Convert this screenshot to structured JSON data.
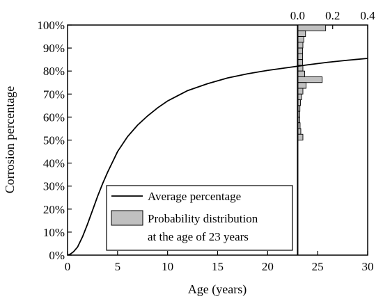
{
  "chart_data": {
    "type": "line",
    "title": "",
    "xlabel": "Age (years)",
    "ylabel": "Corrosion percentage",
    "xlim": [
      0,
      30
    ],
    "ylim": [
      0,
      100
    ],
    "x_ticks": [
      "0",
      "5",
      "10",
      "15",
      "20",
      "25",
      "30"
    ],
    "y_ticks": [
      "0%",
      "10%",
      "20%",
      "30%",
      "40%",
      "50%",
      "60%",
      "70%",
      "80%",
      "90%",
      "100%"
    ],
    "grid": false,
    "legend_position": "bottom-center",
    "series": [
      {
        "name": "Average percentage",
        "color": "#000000",
        "x": [
          0,
          0.3,
          0.6,
          1,
          1.5,
          2,
          2.5,
          3,
          3.5,
          4,
          5,
          6,
          7,
          8,
          9,
          10,
          12,
          14,
          16,
          18,
          20,
          22,
          23,
          24,
          26,
          28,
          30
        ],
        "y": [
          0,
          0.5,
          1.5,
          3.5,
          8,
          13.5,
          19.5,
          25.5,
          31,
          36,
          45,
          51.5,
          56.5,
          60.5,
          64,
          67,
          71.5,
          74.5,
          77,
          78.8,
          80.3,
          81.5,
          82.1,
          82.7,
          83.8,
          84.7,
          85.5
        ]
      }
    ],
    "distribution": {
      "name": "Probability distribution at the age of 23 years",
      "age": 23,
      "color": "#c0c0c0",
      "axis_ticks": [
        "0.0",
        "0.2",
        "0.4"
      ],
      "axis_range": [
        0,
        0.4
      ],
      "bins_percent": [
        [
          97.5,
          100,
          0.16
        ],
        [
          95,
          97.5,
          0.045
        ],
        [
          92.5,
          95,
          0.035
        ],
        [
          90,
          92.5,
          0.03
        ],
        [
          87.5,
          90,
          0.028
        ],
        [
          85,
          87.5,
          0.028
        ],
        [
          82.5,
          85,
          0.028
        ],
        [
          80,
          82.5,
          0.03
        ],
        [
          77.5,
          80,
          0.04
        ],
        [
          75,
          77.5,
          0.14
        ],
        [
          72.5,
          75,
          0.048
        ],
        [
          70,
          72.5,
          0.03
        ],
        [
          67.5,
          70,
          0.022
        ],
        [
          65,
          67.5,
          0.016
        ],
        [
          62.5,
          65,
          0.013
        ],
        [
          60,
          62.5,
          0.012
        ],
        [
          57.5,
          60,
          0.012
        ],
        [
          55,
          57.5,
          0.014
        ],
        [
          52.5,
          55,
          0.018
        ],
        [
          50,
          52.5,
          0.03
        ]
      ]
    },
    "legend": {
      "line_label": "Average percentage",
      "dist_label_line1": "Probability distribution",
      "dist_label_line2": "at the age of 23 years"
    }
  }
}
